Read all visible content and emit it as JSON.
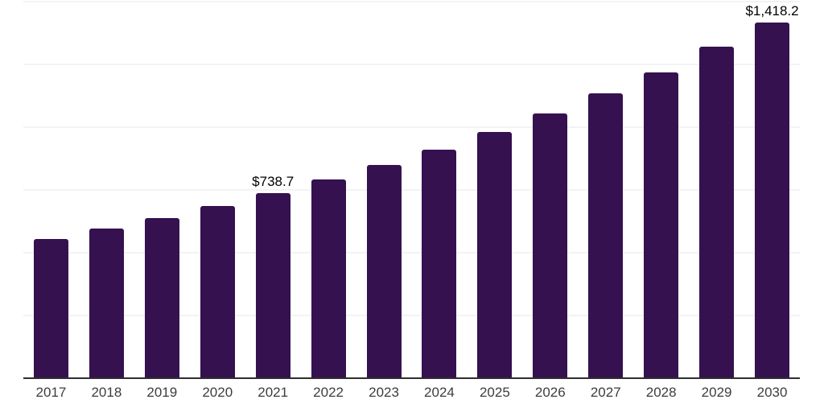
{
  "chart_data": {
    "type": "bar",
    "title": "",
    "xlabel": "",
    "ylabel": "",
    "categories": [
      "2017",
      "2018",
      "2019",
      "2020",
      "2021",
      "2022",
      "2023",
      "2024",
      "2025",
      "2026",
      "2027",
      "2028",
      "2029",
      "2030"
    ],
    "values": [
      553,
      595,
      639,
      687,
      738.7,
      791,
      849,
      911,
      982,
      1054,
      1134,
      1218,
      1319,
      1418.2
    ],
    "value_labels": [
      "",
      "",
      "",
      "",
      "$738.7",
      "",
      "",
      "",
      "",
      "",
      "",
      "",
      "",
      "$1,418.2"
    ],
    "ylim": [
      0,
      1500
    ],
    "gridline_step": 250,
    "grid": "horizontal",
    "y_tick_labels_visible": false,
    "legend": "none",
    "colors": {
      "bar": "#351150",
      "background": "#ffffff",
      "gridline": "#f3f3f3",
      "axis_line": "#2e2e2e",
      "tick_label": "#3d3d3d",
      "value_label": "#000000"
    }
  },
  "layout_note": "single series vertical bar chart, value labels shown only for 2021 and 2030"
}
